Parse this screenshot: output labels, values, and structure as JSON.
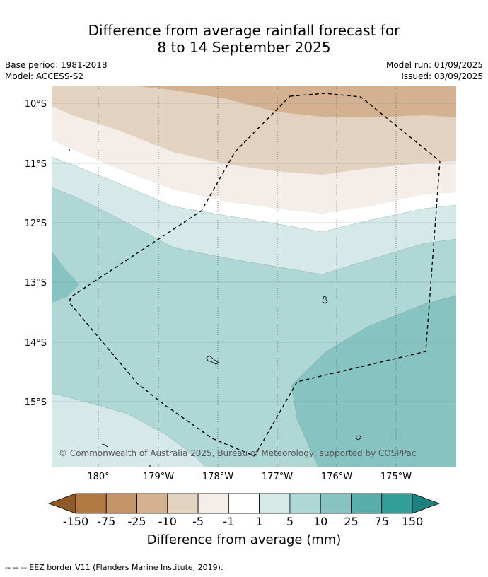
{
  "title_line1": "Difference from average rainfall forecast for",
  "title_line2": "8 to 14 September 2025",
  "base_period": "Base period: 1981-2018",
  "model": "Model: ACCESS-S2",
  "model_run": "Model run: 01/09/2025",
  "issued": "Issued: 03/09/2025",
  "lat_labels": [
    "10°S",
    "11°S",
    "12°S",
    "13°S",
    "14°S",
    "15°S"
  ],
  "lon_labels": [
    "180°",
    "179°W",
    "178°W",
    "177°W",
    "176°W",
    "175°W"
  ],
  "copyright": "© Commonwealth of Australia 2025, Bureau of Meteorology, supported by COSPPac",
  "colorbar": {
    "ticks": [
      "-150",
      "-75",
      "-25",
      "-10",
      "-5",
      "-1",
      "1",
      "5",
      "10",
      "25",
      "75",
      "150"
    ],
    "colors": [
      "#8f5a28",
      "#b07a42",
      "#c49468",
      "#d4b190",
      "#e4d2c1",
      "#f5ede8",
      "#ffffff",
      "#d6e9e9",
      "#aed7d6",
      "#86c3c1",
      "#5aadad",
      "#339d98",
      "#1d827d"
    ],
    "label": "Difference from average (mm)"
  },
  "footnote": "--  --  -- EEZ border V11 (Flanders Marine Institute, 2019)."
}
